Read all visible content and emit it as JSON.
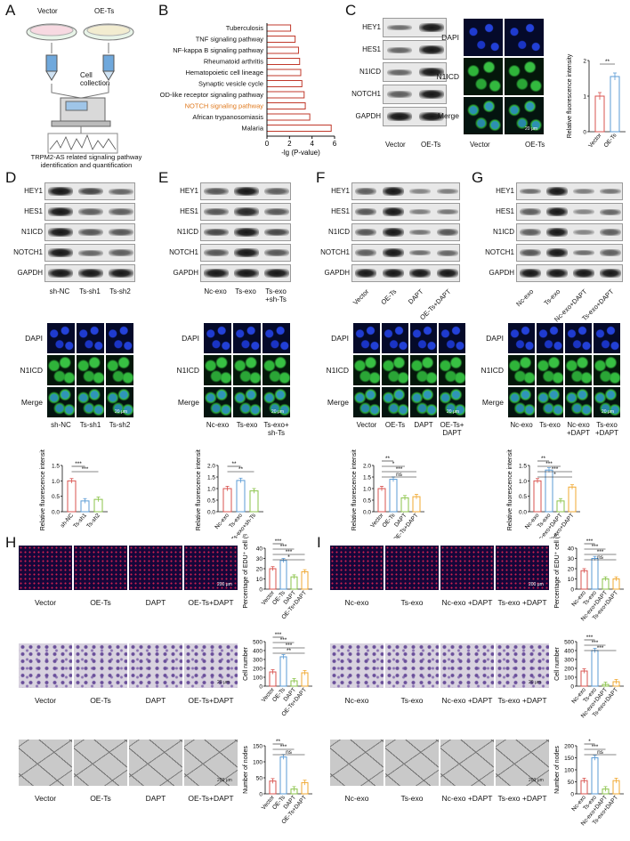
{
  "panels": [
    "A",
    "B",
    "C",
    "D",
    "E",
    "F",
    "G",
    "H",
    "I"
  ],
  "panelA": {
    "vector_label": "Vector",
    "oets_label": "OE-Ts",
    "collection_label": "Cell collection",
    "caption": "TRPM2-AS related signaling pathway identification and quantification"
  },
  "panelB": {
    "chart_data": {
      "type": "bar",
      "orientation": "horizontal",
      "categories": [
        "Tuberculosis",
        "TNF signaling pathway",
        "NF-kappa B signaling pathway",
        "Rheumatoid arthritis",
        "Hematopoietic cell lineage",
        "Synaptic vesicle cycle",
        "NOD-like receptor signaling pathway",
        "NOTCH signaling pathway",
        "African trypanosomiasis",
        "Malaria"
      ],
      "values": [
        2.1,
        2.5,
        2.8,
        2.9,
        3.0,
        3.1,
        3.3,
        3.4,
        3.8,
        5.7
      ],
      "highlight_index": 7,
      "xlabel": "-lg (P-value)",
      "xlim": [
        0,
        6
      ],
      "xticks": [
        "0",
        "2",
        "4",
        "6"
      ]
    }
  },
  "panelC": {
    "proteins": [
      "HEY1",
      "HES1",
      "N1ICD",
      "NOTCH1",
      "GAPDH"
    ],
    "lanes": [
      "Vector",
      "OE-Ts"
    ],
    "if_rows": [
      "DAPI",
      "N1ICD",
      "Merge"
    ],
    "chart_data": {
      "type": "bar",
      "categories": [
        "Vector",
        "OE-Ts"
      ],
      "values": [
        1.0,
        1.55
      ],
      "ylabel": "Relative fluorescence intensity",
      "ylim": [
        0,
        2
      ],
      "yticks": [
        "0",
        "1",
        "2"
      ],
      "significance": [
        "**"
      ]
    }
  },
  "panelD": {
    "lanes": [
      "sh-NC",
      "Ts-sh1",
      "Ts-sh2"
    ],
    "if_rows": [
      "DAPI",
      "N1ICD",
      "Merge"
    ],
    "scale": "20 μm",
    "chart_data": {
      "type": "bar",
      "categories": [
        "sh-NC",
        "Ts-sh1",
        "Ts-sh2"
      ],
      "values": [
        1.0,
        0.35,
        0.4
      ],
      "ylabel": "Relative fluorescence intensity",
      "ylim": [
        0,
        1.5
      ],
      "yticks": [
        "0.0",
        "0.5",
        "1.0",
        "1.5"
      ],
      "significance": [
        "***",
        "***"
      ]
    }
  },
  "panelE": {
    "lanes": [
      "Nc-exo",
      "Ts-exo",
      "Ts-exo +sh-Ts"
    ],
    "if_lanes": [
      "Nc-exo",
      "Ts-exo",
      "Ts-exo+ sh-Ts"
    ],
    "chart_data": {
      "type": "bar",
      "categories": [
        "Nc-exo",
        "Ts-exo",
        "Ts-exo+sh-Ts"
      ],
      "values": [
        1.0,
        1.35,
        0.9
      ],
      "ylabel": "Relative fluorescence intensity",
      "ylim": [
        0,
        2
      ],
      "yticks": [
        "0.0",
        "0.5",
        "1.0",
        "1.5",
        "2.0"
      ],
      "significance": [
        "**",
        "**"
      ]
    }
  },
  "panelF": {
    "lanes": [
      "Vector",
      "OE-Ts",
      "DAPT",
      "OE-Ts+DAPT"
    ],
    "if_lanes": [
      "Vector",
      "OE-Ts",
      "DAPT",
      "OE-Ts+ DAPT"
    ],
    "chart_data": {
      "type": "bar",
      "categories": [
        "Vector",
        "OE-Ts",
        "DAPT",
        "OE-Ts+DAPT"
      ],
      "values": [
        1.0,
        1.4,
        0.6,
        0.65
      ],
      "ylabel": "Relative fluorescence intensity",
      "ylim": [
        0,
        2
      ],
      "yticks": [
        "0.0",
        "0.5",
        "1.0",
        "1.5",
        "2.0"
      ],
      "significance": [
        "**",
        "*",
        "***",
        "ns"
      ]
    }
  },
  "panelG": {
    "lanes": [
      "Nc-exo",
      "Ts-exo",
      "Nc-exo+DAPT",
      "Ts-exo+DAPT"
    ],
    "if_lanes": [
      "Nc-exo",
      "Ts-exo",
      "Nc-exo +DAPT",
      "Ts-exo +DAPT"
    ],
    "chart_data": {
      "type": "bar",
      "categories": [
        "Nc-exo",
        "Ts-exo",
        "Nc-exo+DAPT",
        "Ts-exo+DAPT"
      ],
      "values": [
        1.0,
        1.35,
        0.35,
        0.8
      ],
      "ylabel": "Relative fluorescence intensity",
      "ylim": [
        0,
        1.5
      ],
      "yticks": [
        "0.0",
        "0.5",
        "1.0",
        "1.5"
      ],
      "significance": [
        "**",
        "***",
        "***",
        "*"
      ]
    }
  },
  "panelH": {
    "lanes": [
      "Vector",
      "OE-Ts",
      "DAPT",
      "OE-Ts+DAPT"
    ],
    "charts": [
      {
        "type": "bar",
        "categories": [
          "Vector",
          "OE-Ts",
          "DAPT",
          "OE-Ts+DAPT"
        ],
        "values": [
          20,
          28,
          12,
          17
        ],
        "ylabel": "Percentage of EDU⁺ cell (%)",
        "ylim": [
          0,
          40
        ],
        "yticks": [
          "0",
          "10",
          "20",
          "30",
          "40"
        ],
        "significance": [
          "***",
          "***",
          "***",
          "*"
        ]
      },
      {
        "type": "bar",
        "categories": [
          "Vector",
          "OE-Ts",
          "DAPT",
          "OE-Ts+DAPT"
        ],
        "values": [
          160,
          330,
          60,
          150
        ],
        "ylabel": "Cell number",
        "ylim": [
          0,
          500
        ],
        "yticks": [
          "0",
          "100",
          "200",
          "300",
          "400",
          "500"
        ],
        "significance": [
          "***",
          "***",
          "***",
          "**"
        ]
      },
      {
        "type": "bar",
        "categories": [
          "Vector",
          "OE-Ts",
          "DAPT",
          "OE-Ts+DAPT"
        ],
        "values": [
          40,
          115,
          15,
          35
        ],
        "ylabel": "Number of nodes",
        "ylim": [
          0,
          150
        ],
        "yticks": [
          "0",
          "50",
          "100",
          "150"
        ],
        "significance": [
          "**",
          "***",
          "ns"
        ]
      }
    ]
  },
  "panelI": {
    "lanes": [
      "Nc-exo",
      "Ts-exo",
      "Nc-exo +DAPT",
      "Ts-exo +DAPT"
    ],
    "charts": [
      {
        "type": "bar",
        "categories": [
          "Nc-exo",
          "Ts-exo",
          "Nc-exo+DAPT",
          "Ts-exo+DAPT"
        ],
        "values": [
          18,
          30,
          10,
          10
        ],
        "ylabel": "Percentage of EDU⁺ cell (%)",
        "ylim": [
          0,
          40
        ],
        "yticks": [
          "0",
          "10",
          "20",
          "30",
          "40"
        ],
        "significance": [
          "***",
          "***",
          "***",
          "ns"
        ]
      },
      {
        "type": "bar",
        "categories": [
          "Nc-exo",
          "Ts-exo",
          "Nc-exo+DAPT",
          "Ts-exo+DAPT"
        ],
        "values": [
          170,
          400,
          20,
          50
        ],
        "ylabel": "Cell number",
        "ylim": [
          0,
          500
        ],
        "yticks": [
          "0",
          "100",
          "200",
          "300",
          "400",
          "500"
        ],
        "significance": [
          "***",
          "***",
          "***"
        ]
      },
      {
        "type": "bar",
        "categories": [
          "Nc-exo",
          "Ts-exo",
          "Nc-exo+DAPT",
          "Ts-exo+DAPT"
        ],
        "values": [
          55,
          150,
          20,
          55
        ],
        "ylabel": "Number of nodes",
        "ylim": [
          0,
          200
        ],
        "yticks": [
          "0",
          "50",
          "100",
          "150",
          "200"
        ],
        "significance": [
          "*",
          "***",
          "ns"
        ]
      }
    ]
  },
  "scales": {
    "if": "20 μm",
    "edu": "200 μm",
    "tube": "200 μm"
  }
}
